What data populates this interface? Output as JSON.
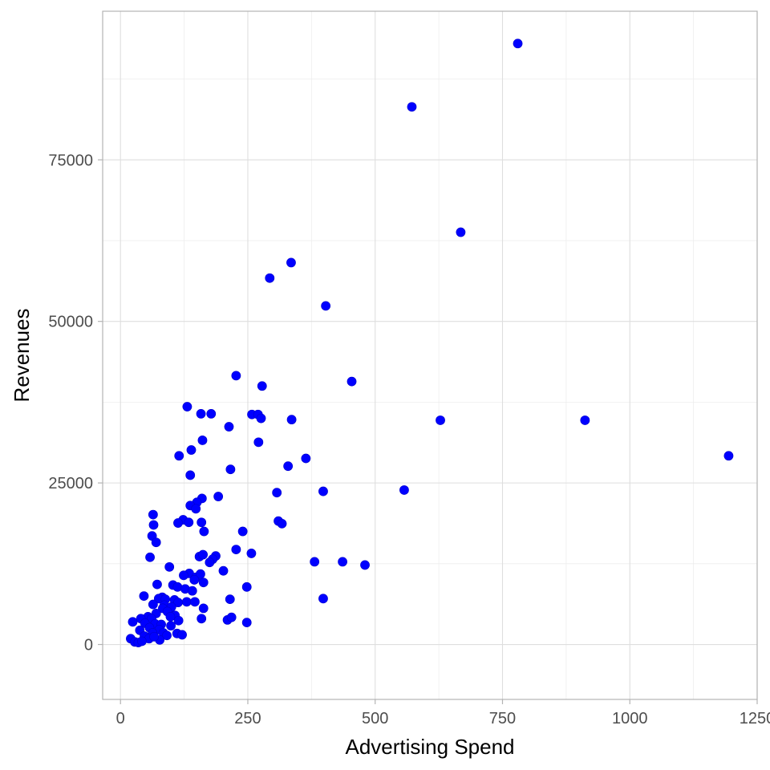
{
  "chart_data": {
    "type": "scatter",
    "title": "",
    "xlabel": "Advertising Spend",
    "ylabel": "Revenues",
    "xlim": [
      -35,
      1250
    ],
    "ylim": [
      -8500,
      98000
    ],
    "xticks": [
      0,
      250,
      500,
      750,
      1000,
      1250
    ],
    "xtick_labels": [
      "0",
      "250",
      "500",
      "750",
      "1000",
      "1250"
    ],
    "yticks": [
      0,
      25000,
      50000,
      75000
    ],
    "ytick_labels": [
      "0",
      "25000",
      "50000",
      "75000"
    ],
    "grid": true,
    "legend": "none",
    "point_color": "#0000ff",
    "points": [
      [
        780,
        93000
      ],
      [
        572,
        83200
      ],
      [
        668,
        63800
      ],
      [
        335,
        59100
      ],
      [
        293,
        56700
      ],
      [
        403,
        52400
      ],
      [
        227,
        41600
      ],
      [
        454,
        40700
      ],
      [
        278,
        40000
      ],
      [
        131,
        36800
      ],
      [
        158,
        35700
      ],
      [
        178,
        35700
      ],
      [
        258,
        35600
      ],
      [
        270,
        35600
      ],
      [
        276,
        35000
      ],
      [
        336,
        34800
      ],
      [
        628,
        34700
      ],
      [
        912,
        34700
      ],
      [
        213,
        33700
      ],
      [
        161,
        31600
      ],
      [
        271,
        31300
      ],
      [
        139,
        30100
      ],
      [
        115,
        29200
      ],
      [
        364,
        28800
      ],
      [
        1194,
        29200
      ],
      [
        329,
        27600
      ],
      [
        216,
        27100
      ],
      [
        137,
        26200
      ],
      [
        307,
        23500
      ],
      [
        398,
        23700
      ],
      [
        557,
        23900
      ],
      [
        192,
        22900
      ],
      [
        160,
        22600
      ],
      [
        150,
        22000
      ],
      [
        137,
        21500
      ],
      [
        148,
        21000
      ],
      [
        64,
        20100
      ],
      [
        123,
        19300
      ],
      [
        113,
        18800
      ],
      [
        134,
        18900
      ],
      [
        159,
        18900
      ],
      [
        310,
        19100
      ],
      [
        317,
        18700
      ],
      [
        65,
        18500
      ],
      [
        240,
        17500
      ],
      [
        164,
        17500
      ],
      [
        62,
        16800
      ],
      [
        70,
        15800
      ],
      [
        227,
        14700
      ],
      [
        257,
        14100
      ],
      [
        58,
        13500
      ],
      [
        187,
        13700
      ],
      [
        155,
        13600
      ],
      [
        162,
        13900
      ],
      [
        181,
        13200
      ],
      [
        175,
        12700
      ],
      [
        381,
        12800
      ],
      [
        436,
        12800
      ],
      [
        480,
        12300
      ],
      [
        96,
        12000
      ],
      [
        202,
        11400
      ],
      [
        135,
        11000
      ],
      [
        148,
        10400
      ],
      [
        157,
        10900
      ],
      [
        163,
        9600
      ],
      [
        145,
        10000
      ],
      [
        124,
        10700
      ],
      [
        72,
        9300
      ],
      [
        103,
        9200
      ],
      [
        112,
        8900
      ],
      [
        248,
        8900
      ],
      [
        127,
        8600
      ],
      [
        141,
        8300
      ],
      [
        46,
        7500
      ],
      [
        82,
        7300
      ],
      [
        75,
        7100
      ],
      [
        88,
        7000
      ],
      [
        106,
        6900
      ],
      [
        130,
        6600
      ],
      [
        215,
        7000
      ],
      [
        398,
        7100
      ],
      [
        113,
        6500
      ],
      [
        146,
        6600
      ],
      [
        64,
        6200
      ],
      [
        86,
        6100
      ],
      [
        100,
        5800
      ],
      [
        83,
        5600
      ],
      [
        163,
        5600
      ],
      [
        92,
        5100
      ],
      [
        70,
        4800
      ],
      [
        107,
        4500
      ],
      [
        54,
        4300
      ],
      [
        98,
        4300
      ],
      [
        61,
        4000
      ],
      [
        40,
        4000
      ],
      [
        114,
        3700
      ],
      [
        159,
        4000
      ],
      [
        210,
        3800
      ],
      [
        218,
        4200
      ],
      [
        248,
        3400
      ],
      [
        24,
        3500
      ],
      [
        48,
        3300
      ],
      [
        68,
        3200
      ],
      [
        80,
        3100
      ],
      [
        99,
        2900
      ],
      [
        57,
        2600
      ],
      [
        38,
        2200
      ],
      [
        76,
        2300
      ],
      [
        84,
        1800
      ],
      [
        111,
        1700
      ],
      [
        121,
        1500
      ],
      [
        63,
        1800
      ],
      [
        91,
        1400
      ],
      [
        47,
        1300
      ],
      [
        56,
        900
      ],
      [
        77,
        700
      ],
      [
        20,
        900
      ],
      [
        28,
        400
      ],
      [
        35,
        300
      ],
      [
        42,
        500
      ],
      [
        66,
        1200
      ]
    ]
  }
}
